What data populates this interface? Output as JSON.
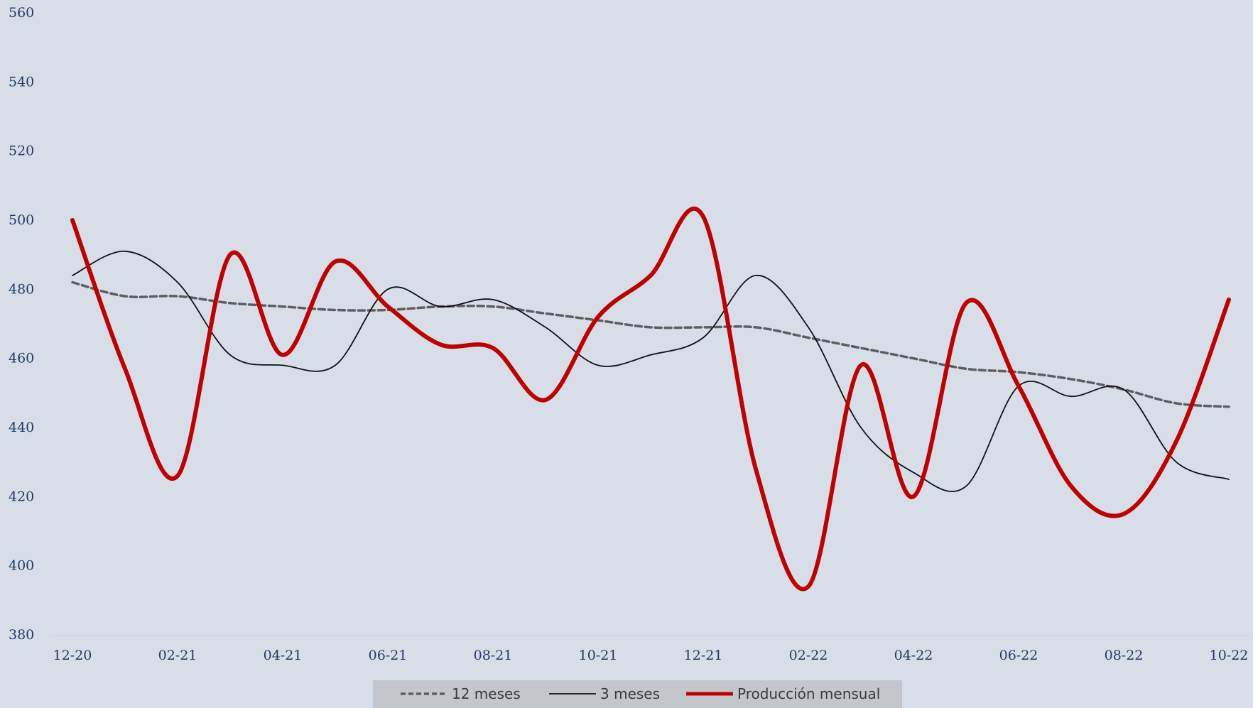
{
  "chart_data": {
    "type": "line",
    "title": "",
    "xlabel": "",
    "ylabel": "",
    "ylim": [
      380,
      560
    ],
    "yticks": [
      380,
      400,
      420,
      440,
      460,
      480,
      500,
      520,
      540,
      560
    ],
    "ytick_labels": [
      "380",
      "400",
      "420",
      "440",
      "460",
      "480",
      "500",
      "520",
      "540",
      "560"
    ],
    "categories": [
      "12-20",
      "01-21",
      "02-21",
      "03-21",
      "04-21",
      "05-21",
      "06-21",
      "07-21",
      "08-21",
      "09-21",
      "10-21",
      "11-21",
      "12-21",
      "01-22",
      "02-22",
      "03-22",
      "04-22",
      "05-22",
      "06-22",
      "07-22",
      "08-22",
      "09-22",
      "10-22"
    ],
    "xtick_labels": [
      "12-20",
      "02-21",
      "04-21",
      "06-21",
      "08-21",
      "10-21",
      "12-21",
      "02-22",
      "04-22",
      "06-22",
      "08-22",
      "10-22"
    ],
    "grid": false,
    "legend_position": "bottom-center",
    "series": [
      {
        "name": "12 meses",
        "style": "dashed",
        "color": "#5e5e5e",
        "values": [
          482,
          478,
          478,
          476,
          475,
          474,
          474,
          475,
          475,
          473,
          471,
          469,
          469,
          469,
          466,
          463,
          460,
          457,
          456,
          454,
          451,
          447,
          446
        ]
      },
      {
        "name": "3 meses",
        "style": "solid",
        "color": "#111111",
        "values": [
          484,
          491,
          482,
          461,
          458,
          458,
          480,
          475,
          477,
          469,
          458,
          461,
          466,
          484,
          469,
          440,
          427,
          423,
          452,
          449,
          451,
          430,
          425
        ]
      },
      {
        "name": "Producción mensual",
        "style": "solid-thick",
        "color": "#c00000",
        "values": [
          500,
          457,
          426,
          490,
          461,
          488,
          475,
          464,
          463,
          448,
          472,
          484,
          501,
          428,
          394,
          458,
          420,
          476,
          452,
          423,
          415,
          436,
          477
        ]
      }
    ]
  }
}
